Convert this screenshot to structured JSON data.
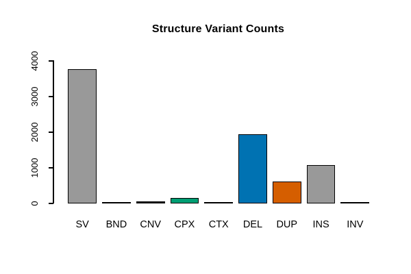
{
  "window": {
    "background_color": "#ffffff"
  },
  "chart_data": {
    "type": "bar",
    "title": "Structure Variant Counts",
    "xlabel": "",
    "ylabel": "",
    "categories": [
      "SV",
      "BND",
      "CNV",
      "CPX",
      "CTX",
      "DEL",
      "DUP",
      "INS",
      "INV"
    ],
    "values": [
      3760,
      20,
      50,
      160,
      10,
      1950,
      610,
      1070,
      30
    ],
    "bar_colors": [
      "#999999",
      "#999999",
      "#000000",
      "#009E73",
      "#999999",
      "#0072B2",
      "#D55E00",
      "#999999",
      "#000000"
    ],
    "bar_border_color": "#000000",
    "ylim": [
      0,
      4000
    ],
    "yticks": [
      0,
      1000,
      2000,
      3000,
      4000
    ],
    "grid": false,
    "legend": null,
    "axis_color": "#000000",
    "text_color": "#000000",
    "title_bold": true,
    "ytick_labels_rotated_degrees": 90
  }
}
